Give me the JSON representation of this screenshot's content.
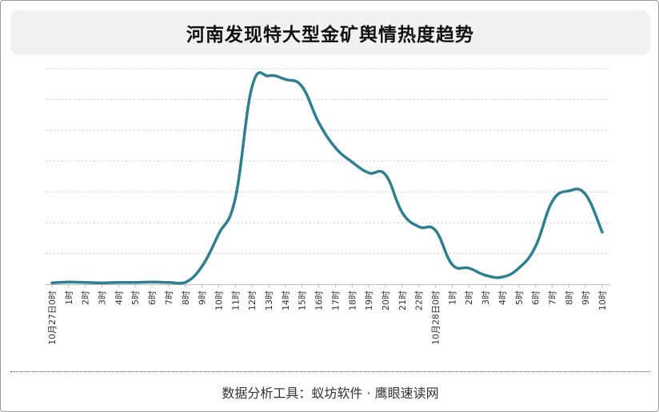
{
  "header": {
    "title": "河南发现特大型金矿舆情热度趋势"
  },
  "footer": {
    "source_prefix": "数据分析工具：",
    "source_tools": "蚁坊软件 · 鹰眼速读网"
  },
  "colors": {
    "line": "#2f7f92",
    "grid": "#b9c7de",
    "axis": "#bbbbbb",
    "tick_label": "#333333"
  },
  "chart_data": {
    "type": "line",
    "title": "河南发现特大型金矿舆情热度趋势",
    "xlabel": "",
    "ylabel": "",
    "y_axis_labels_shown": false,
    "grid": "horizontal-dotted",
    "ylim": [
      0,
      6
    ],
    "categories": [
      "10月27日0时",
      "1时",
      "2时",
      "3时",
      "4时",
      "5时",
      "6时",
      "7时",
      "8时",
      "9时",
      "10时",
      "11时",
      "12时",
      "13时",
      "14时",
      "15时",
      "16时",
      "17时",
      "18时",
      "19时",
      "20时",
      "21时",
      "22时",
      "10月28日0时",
      "1时",
      "2时",
      "3时",
      "4时",
      "5时",
      "6时",
      "7时",
      "8时",
      "9时",
      "10时"
    ],
    "series": [
      {
        "values": [
          0.04,
          0.06,
          0.05,
          0.04,
          0.05,
          0.05,
          0.06,
          0.05,
          0.05,
          0.5,
          1.4,
          2.4,
          5.5,
          5.8,
          5.7,
          5.5,
          4.5,
          3.8,
          3.4,
          3.1,
          3.05,
          2.0,
          1.6,
          1.5,
          0.55,
          0.45,
          0.25,
          0.2,
          0.45,
          1.05,
          2.3,
          2.6,
          2.5,
          1.45
        ]
      }
    ]
  }
}
